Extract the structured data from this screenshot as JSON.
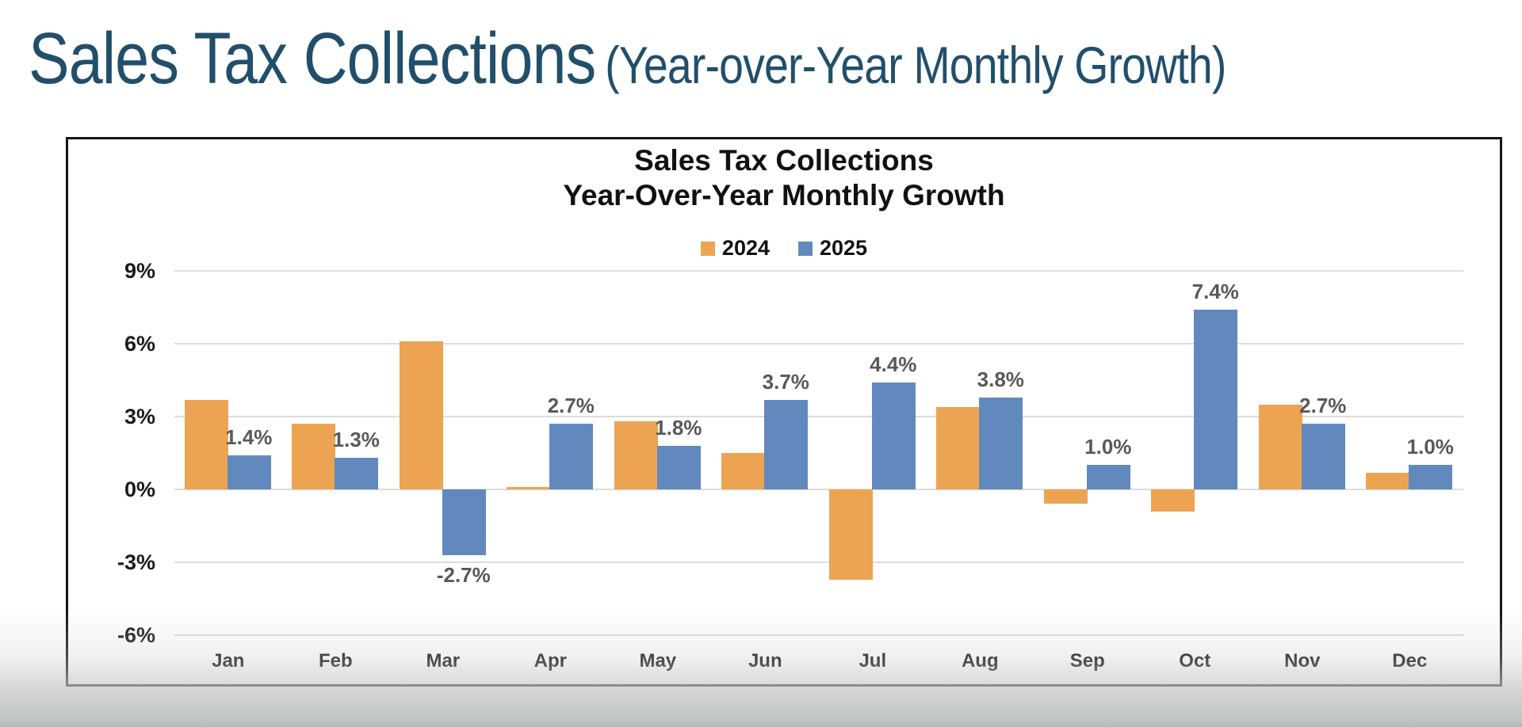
{
  "page": {
    "title": "Sales Tax Collections",
    "title_suffix": "(Year-over-Year Monthly Growth)",
    "title_color": "#214f6b"
  },
  "chart": {
    "title_line1": "Sales Tax Collections",
    "title_line2": "Year-Over-Year Monthly Growth",
    "text_color": "#111111",
    "data_label_color": "#595959",
    "gridline_color": "#dcdcdc",
    "frame_border_color": "#161616",
    "background": "#ffffff"
  },
  "chart_data": {
    "type": "bar",
    "title": "Sales Tax Collections",
    "subtitle": "Year-Over-Year Monthly Growth",
    "categories": [
      "Jan",
      "Feb",
      "Mar",
      "Apr",
      "May",
      "Jun",
      "Jul",
      "Aug",
      "Sep",
      "Oct",
      "Nov",
      "Dec"
    ],
    "series": [
      {
        "name": "2024",
        "color": "#eca452",
        "values": [
          3.7,
          2.7,
          6.1,
          0.1,
          2.8,
          1.5,
          -3.7,
          3.4,
          -0.6,
          -0.9,
          3.5,
          0.7
        ],
        "data_labels_visible": false
      },
      {
        "name": "2025",
        "color": "#6289be",
        "values": [
          1.4,
          1.3,
          -2.7,
          2.7,
          1.8,
          3.7,
          4.4,
          3.8,
          1.0,
          7.4,
          2.7,
          1.0
        ],
        "data_labels_visible": true,
        "data_labels": [
          "1.4%",
          "1.3%",
          "-2.7%",
          "2.7%",
          "1.8%",
          "3.7%",
          "4.4%",
          "3.8%",
          "1.0%",
          "7.4%",
          "2.7%",
          "1.0%"
        ]
      }
    ],
    "y_axis": {
      "tick_labels": [
        "9%",
        "6%",
        "3%",
        "0%",
        "-3%",
        "-6%"
      ],
      "tick_values": [
        9,
        6,
        3,
        0,
        -3,
        -6
      ],
      "unit": "percent"
    },
    "ylim": [
      -7.5,
      10.5
    ],
    "grid": true,
    "legend_position": "top-center",
    "legend": [
      "2024",
      "2025"
    ]
  }
}
